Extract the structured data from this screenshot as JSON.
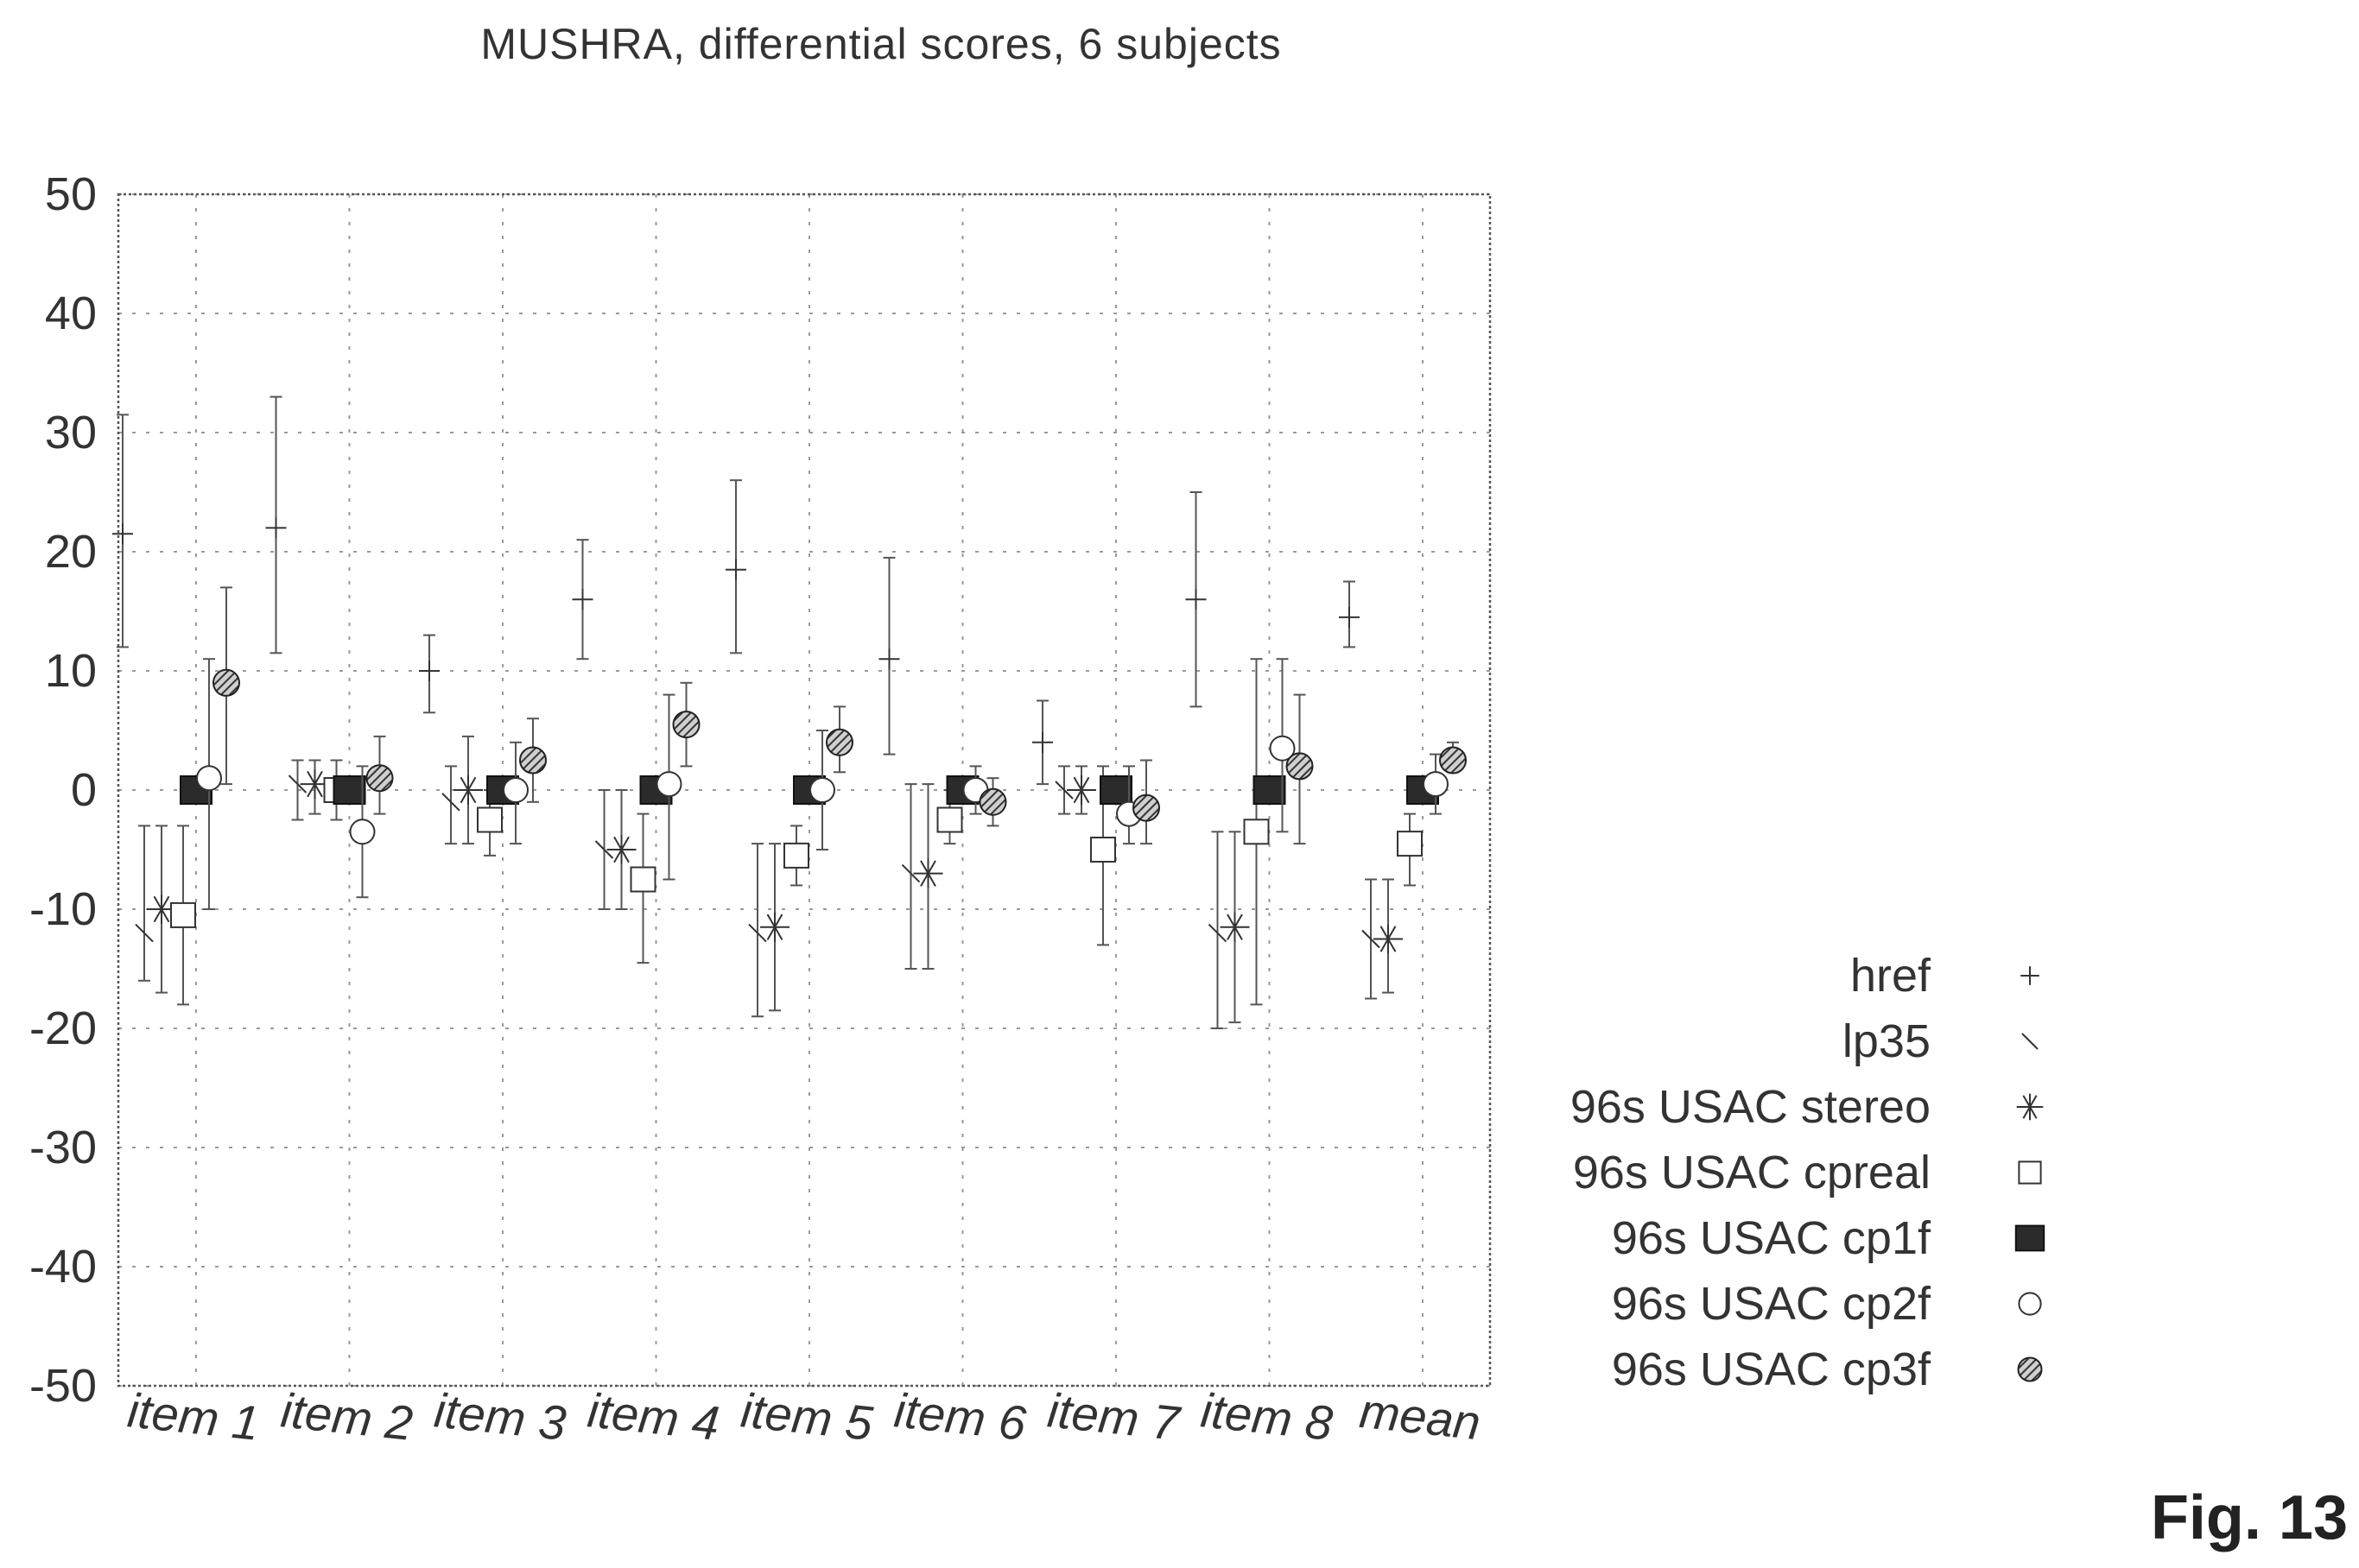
{
  "chart_data": {
    "type": "scatter",
    "title": "MUSHRA, differential scores, 6 subjects",
    "figure_label": "Fig. 13",
    "categories": [
      "item 1",
      "item 2",
      "item 3",
      "item 4",
      "item 5",
      "item 6",
      "item 7",
      "item 8",
      "mean"
    ],
    "ylim": [
      -50,
      50
    ],
    "yticks": [
      "50",
      "40",
      "30",
      "20",
      "10",
      "0",
      "-10",
      "-20",
      "-30",
      "-40",
      "-50"
    ],
    "ytick_values": [
      50,
      40,
      30,
      20,
      10,
      0,
      -10,
      -20,
      -30,
      -40,
      -50
    ],
    "grid": true,
    "legend_position": "right",
    "series": [
      {
        "name": "href",
        "marker": "plus",
        "values": [
          21.5,
          22,
          10,
          16,
          18.5,
          11,
          4,
          16,
          14.5
        ],
        "error_low": [
          12,
          11.5,
          6.5,
          11,
          11.5,
          3,
          0.5,
          7,
          12
        ],
        "error_high": [
          31.5,
          33,
          13,
          21,
          26,
          19.5,
          7.5,
          25,
          17.5
        ]
      },
      {
        "name": "lp35",
        "marker": "slash",
        "values": [
          -12,
          0.5,
          -1,
          -5,
          -12,
          -7,
          0,
          -12,
          -12.5
        ],
        "error_low": [
          -16,
          -2.5,
          -4.5,
          -10,
          -19,
          -15,
          -2,
          -20,
          -17.5
        ],
        "error_high": [
          -3,
          2.5,
          2,
          0,
          -4.5,
          0.5,
          2,
          -3.5,
          -7.5
        ]
      },
      {
        "name": "96s USAC stereo",
        "marker": "asterisk",
        "values": [
          -10,
          0.5,
          0,
          -5,
          -11.5,
          -7,
          0,
          -11.5,
          -12.5
        ],
        "error_low": [
          -17,
          -2,
          -4.5,
          -10,
          -18.5,
          -15,
          -2,
          -19.5,
          -17
        ],
        "error_high": [
          -3,
          2.5,
          4.5,
          0,
          -4.5,
          0.5,
          2,
          -3.5,
          -7.5
        ]
      },
      {
        "name": "96s USAC cpreal",
        "marker": "square",
        "values": [
          -10.5,
          0,
          -2.5,
          -7.5,
          -5.5,
          -2.5,
          -5,
          -3.5,
          -4.5
        ],
        "error_low": [
          -18,
          -2.5,
          -5.5,
          -14.5,
          -8,
          -4.5,
          -13,
          -18,
          -8
        ],
        "error_high": [
          -3,
          2.5,
          0,
          -2,
          -3,
          0,
          2,
          11,
          -2
        ]
      },
      {
        "name": "96s USAC cp1f",
        "marker": "filled-square",
        "values": [
          0,
          0,
          0,
          0,
          0,
          0,
          0,
          0,
          0
        ],
        "error_low": [
          0,
          0,
          0,
          0,
          0,
          0,
          0,
          0,
          0
        ],
        "error_high": [
          0,
          0,
          0,
          0,
          0,
          0,
          0,
          0,
          0
        ]
      },
      {
        "name": "96s USAC cp2f",
        "marker": "circle",
        "values": [
          1,
          -3.5,
          0,
          0.5,
          0,
          0,
          -2,
          3.5,
          0.5
        ],
        "error_low": [
          -10,
          -9,
          -4.5,
          -7.5,
          -5,
          -2,
          -4.5,
          -3.5,
          -2
        ],
        "error_high": [
          11,
          2,
          4,
          8,
          5,
          2,
          2,
          11,
          3
        ]
      },
      {
        "name": "96s USAC cp3f",
        "marker": "hatched-circle",
        "values": [
          9,
          1,
          2.5,
          5.5,
          4,
          -1,
          -1.5,
          2,
          2.5
        ],
        "error_low": [
          0.5,
          -2,
          -1,
          2,
          1.5,
          -3,
          -4.5,
          -4.5,
          1.5
        ],
        "error_high": [
          17,
          4.5,
          6,
          9,
          7,
          1,
          2.5,
          8,
          4
        ]
      }
    ]
  },
  "colors": {
    "marker": "#333333",
    "hatch": "#444444",
    "grid": "#9a9a9a"
  }
}
